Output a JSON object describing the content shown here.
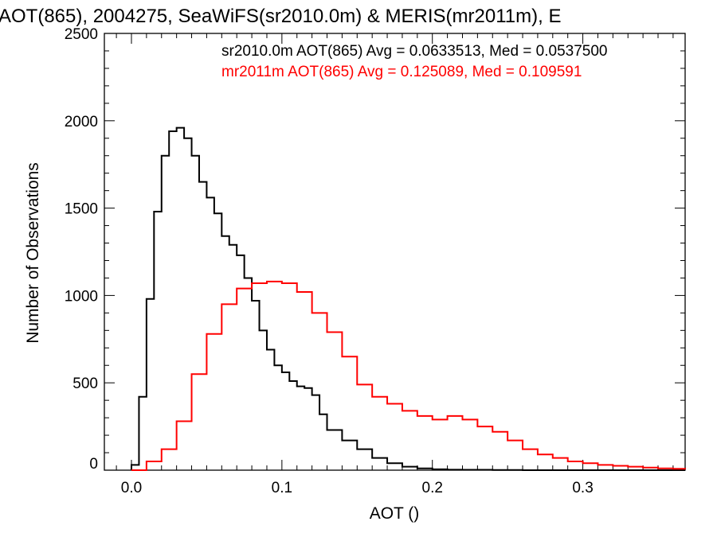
{
  "chart_data": {
    "type": "histogram-step",
    "title": "AOT(865), 2004275, SeaWiFS(sr2010.0m) & MERIS(mr2011m), E",
    "xlabel": "AOT ()",
    "ylabel": "Number of Observations",
    "xlim": [
      -0.018,
      0.368
    ],
    "ylim": [
      0,
      2500
    ],
    "x_ticks": [
      0.0,
      0.1,
      0.2,
      0.3
    ],
    "x_tick_labels": [
      "0.0",
      "0.1",
      "0.2",
      "0.3"
    ],
    "y_ticks": [
      0,
      500,
      1000,
      1500,
      2000,
      2500
    ],
    "y_tick_labels": [
      "0",
      "500",
      "1000",
      "1500",
      "2000",
      "2500"
    ],
    "legend_placement": "top-right",
    "series": [
      {
        "name": "sr2010.0m",
        "color": "#000000",
        "legend": "sr2010.0m AOT(865) Avg = 0.0633513, Med = 0.0537500",
        "x": [
          0.0,
          0.005,
          0.01,
          0.015,
          0.02,
          0.025,
          0.03,
          0.035,
          0.04,
          0.045,
          0.05,
          0.055,
          0.06,
          0.065,
          0.07,
          0.075,
          0.08,
          0.085,
          0.09,
          0.095,
          0.1,
          0.105,
          0.11,
          0.115,
          0.12,
          0.125,
          0.13,
          0.14,
          0.15,
          0.16,
          0.17,
          0.18,
          0.19,
          0.2,
          0.21,
          0.22,
          0.24,
          0.26,
          0.3,
          0.368
        ],
        "y": [
          30,
          420,
          980,
          1480,
          1800,
          1940,
          1960,
          1900,
          1800,
          1650,
          1560,
          1470,
          1340,
          1290,
          1230,
          1100,
          970,
          800,
          690,
          600,
          560,
          510,
          480,
          470,
          430,
          320,
          230,
          170,
          120,
          70,
          40,
          20,
          10,
          5,
          3,
          2,
          1,
          0,
          0,
          0
        ]
      },
      {
        "name": "mr2011m",
        "color": "#ff0000",
        "legend": "mr2011m AOT(865) Avg = 0.125089, Med = 0.109591",
        "x": [
          0.0,
          0.01,
          0.02,
          0.03,
          0.04,
          0.05,
          0.06,
          0.07,
          0.08,
          0.09,
          0.1,
          0.11,
          0.12,
          0.13,
          0.14,
          0.15,
          0.16,
          0.17,
          0.18,
          0.19,
          0.2,
          0.21,
          0.22,
          0.23,
          0.24,
          0.25,
          0.26,
          0.27,
          0.28,
          0.29,
          0.3,
          0.31,
          0.32,
          0.33,
          0.34,
          0.35,
          0.36,
          0.368
        ],
        "y": [
          0,
          50,
          120,
          280,
          550,
          780,
          950,
          1040,
          1070,
          1080,
          1070,
          1020,
          900,
          790,
          650,
          490,
          420,
          380,
          340,
          310,
          290,
          310,
          290,
          250,
          220,
          170,
          120,
          90,
          70,
          50,
          40,
          30,
          25,
          20,
          15,
          10,
          8,
          5
        ]
      }
    ]
  }
}
